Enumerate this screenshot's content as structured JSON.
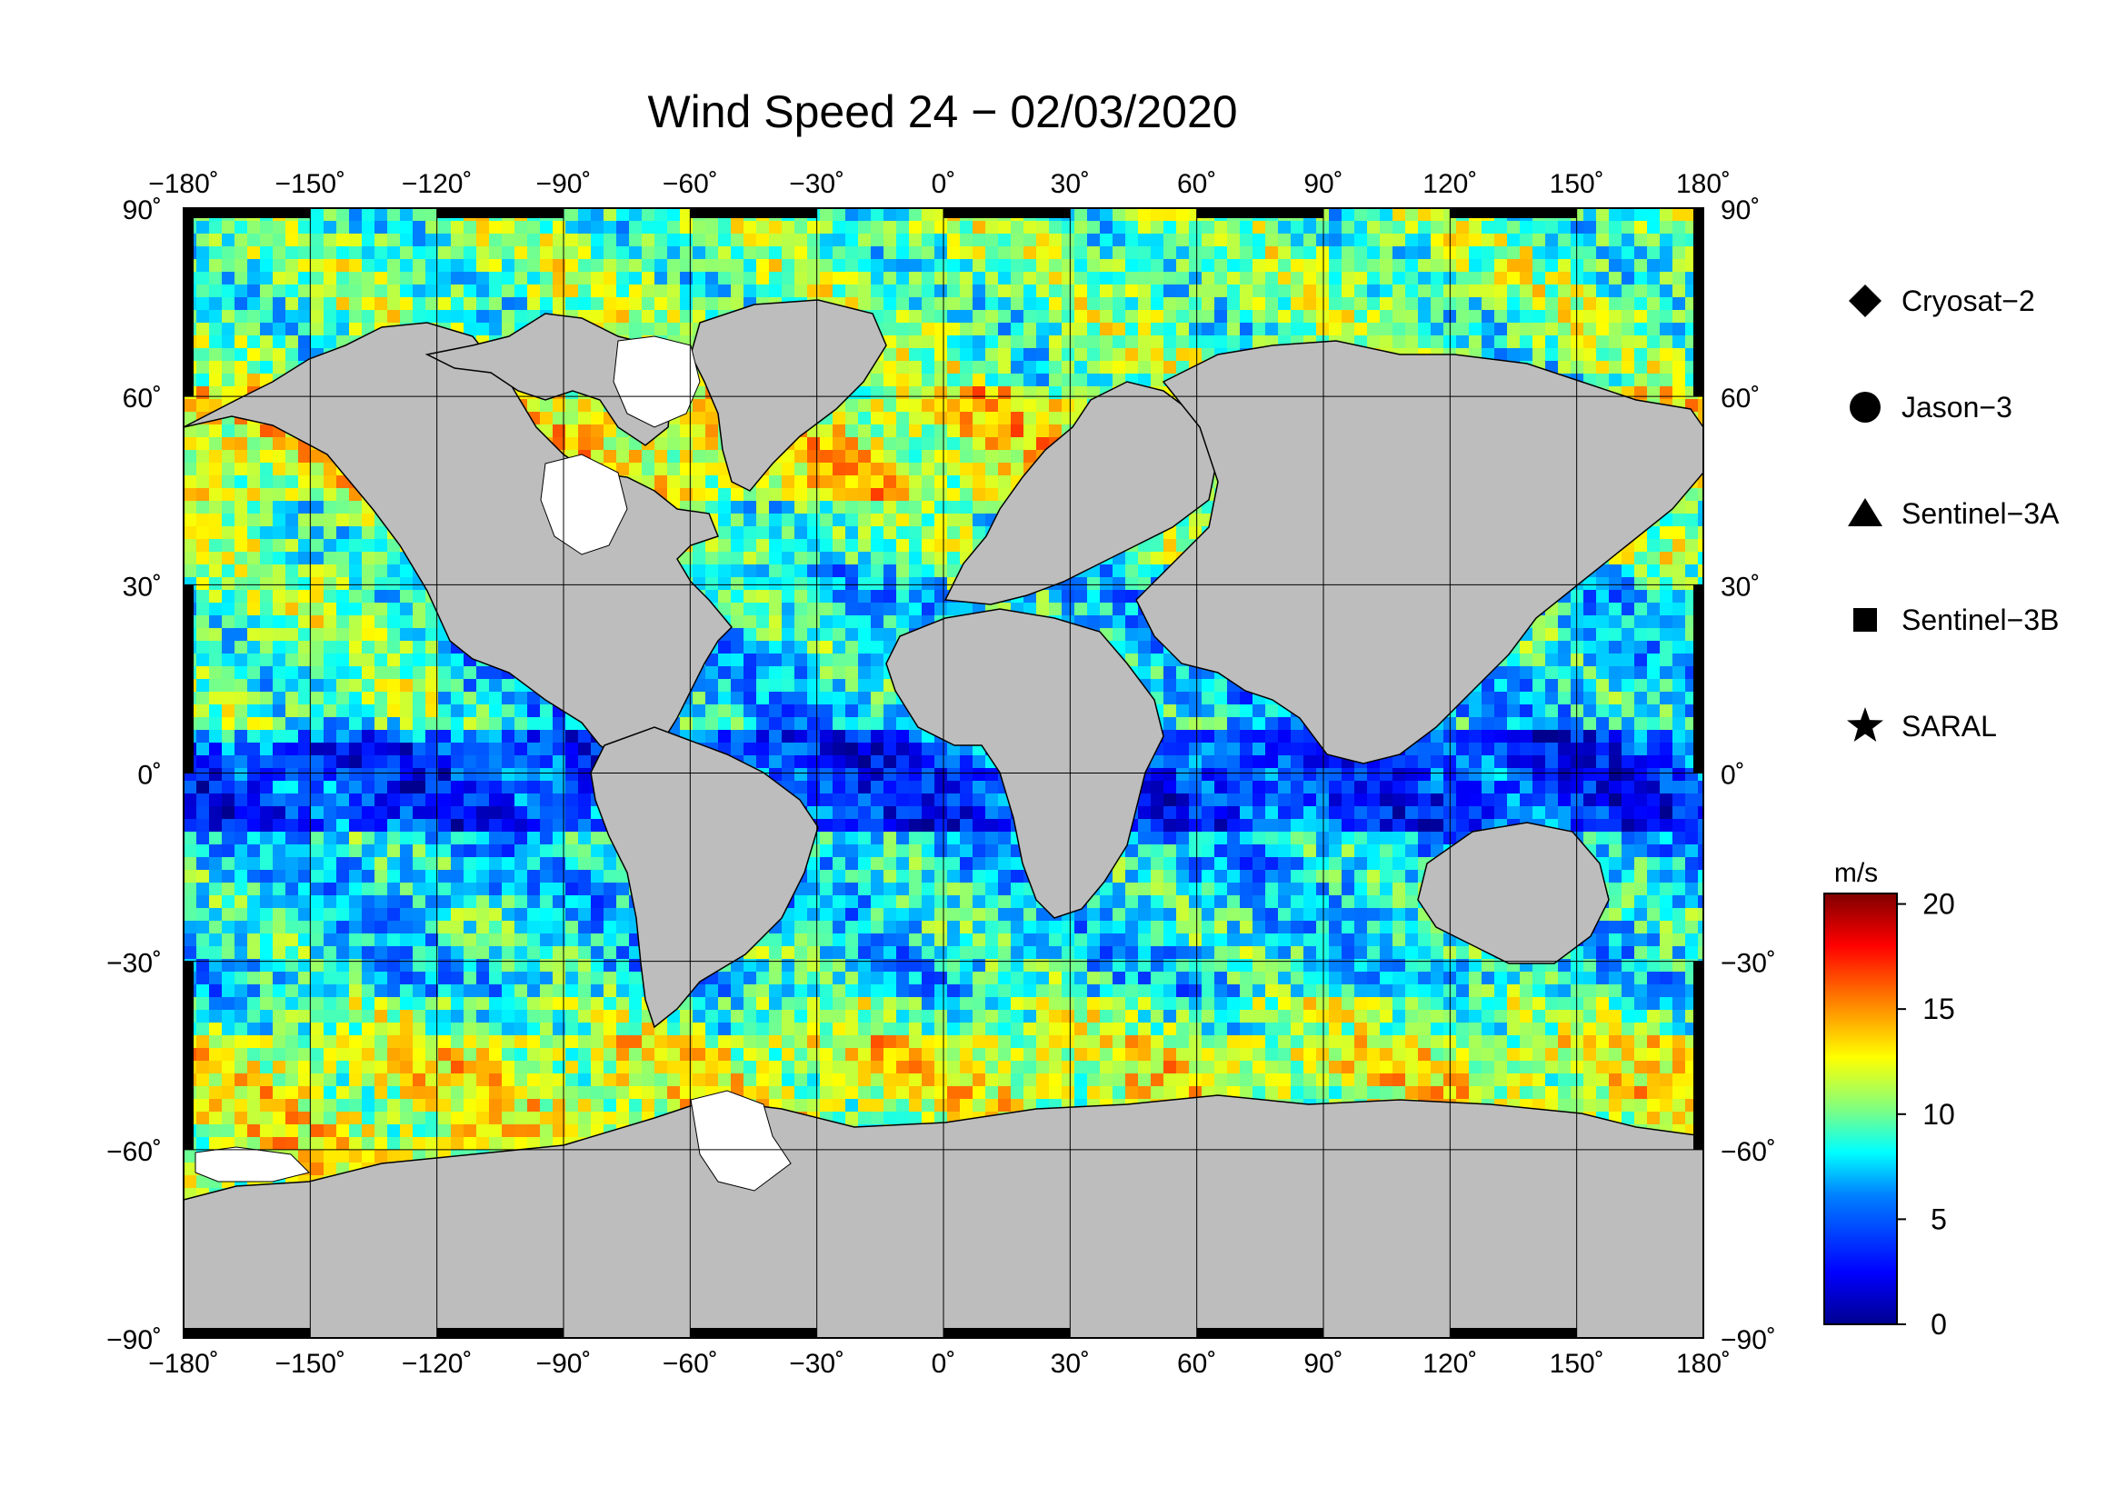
{
  "title": "Wind Speed 24 − 02/03/2020",
  "map": {
    "projection": "equirectangular",
    "lon_range": [
      -180,
      180
    ],
    "lat_range": [
      -90,
      90
    ],
    "land_color": "#bdbdbd",
    "ice_color": "#ffffff",
    "grid": true,
    "lon_ticks": [
      "−180˚",
      "−150˚",
      "−120˚",
      "−90˚",
      "−60˚",
      "−30˚",
      "0˚",
      "30˚",
      "60˚",
      "90˚",
      "120˚",
      "150˚",
      "180˚"
    ],
    "lat_ticks": [
      "90˚",
      "60˚",
      "30˚",
      "0˚",
      "−30˚",
      "−60˚",
      "−90˚"
    ],
    "lon_values": [
      -180,
      -150,
      -120,
      -90,
      -60,
      -30,
      0,
      30,
      60,
      90,
      120,
      150,
      180
    ],
    "lat_values": [
      90,
      60,
      30,
      0,
      -30,
      -60,
      -90
    ]
  },
  "legend": {
    "placement": "right",
    "items": [
      {
        "label": "Cryosat−2",
        "marker": "diamond-icon"
      },
      {
        "label": "Jason−3",
        "marker": "circle-icon"
      },
      {
        "label": "Sentinel−3A",
        "marker": "triangle-icon"
      },
      {
        "label": "Sentinel−3B",
        "marker": "square-icon"
      },
      {
        "label": "SARAL",
        "marker": "star-icon"
      }
    ]
  },
  "colorbar": {
    "unit": "m/s",
    "min": 0,
    "max": 20.5,
    "ticks": [
      {
        "value": 0,
        "label": "0"
      },
      {
        "value": 5,
        "label": "5"
      },
      {
        "value": 10,
        "label": "10"
      },
      {
        "value": 15,
        "label": "15"
      },
      {
        "value": 20,
        "label": "20"
      }
    ],
    "colormap": "jet",
    "colors": [
      "#00008f",
      "#0000ff",
      "#0080ff",
      "#00ffff",
      "#80ff80",
      "#ffff00",
      "#ff8000",
      "#ff0000",
      "#800000"
    ]
  }
}
